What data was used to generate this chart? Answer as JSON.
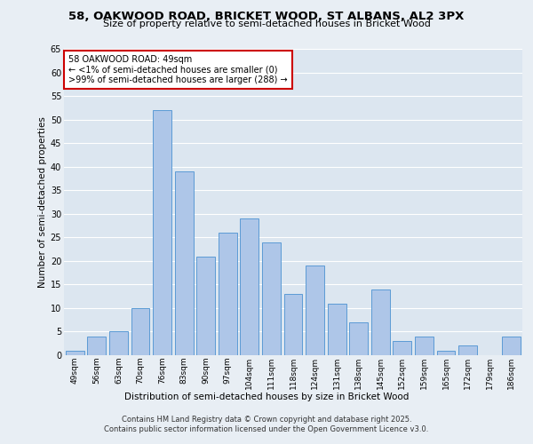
{
  "title_line1": "58, OAKWOOD ROAD, BRICKET WOOD, ST ALBANS, AL2 3PX",
  "title_line2": "Size of property relative to semi-detached houses in Bricket Wood",
  "xlabel": "Distribution of semi-detached houses by size in Bricket Wood",
  "ylabel": "Number of semi-detached properties",
  "categories": [
    "49sqm",
    "56sqm",
    "63sqm",
    "70sqm",
    "76sqm",
    "83sqm",
    "90sqm",
    "97sqm",
    "104sqm",
    "111sqm",
    "118sqm",
    "124sqm",
    "131sqm",
    "138sqm",
    "145sqm",
    "152sqm",
    "159sqm",
    "165sqm",
    "172sqm",
    "179sqm",
    "186sqm"
  ],
  "values": [
    1,
    4,
    5,
    10,
    52,
    39,
    21,
    26,
    29,
    24,
    13,
    19,
    11,
    7,
    14,
    3,
    4,
    1,
    2,
    0,
    4
  ],
  "bar_color": "#aec6e8",
  "bar_edge_color": "#5b9bd5",
  "annotation_text": "58 OAKWOOD ROAD: 49sqm\n← <1% of semi-detached houses are smaller (0)\n>99% of semi-detached houses are larger (288) →",
  "annotation_box_color": "#ffffff",
  "annotation_box_edge": "#cc0000",
  "bg_color": "#e8eef4",
  "plot_bg_color": "#dce6f0",
  "footer_text": "Contains HM Land Registry data © Crown copyright and database right 2025.\nContains public sector information licensed under the Open Government Licence v3.0.",
  "ylim": [
    0,
    65
  ],
  "yticks": [
    0,
    5,
    10,
    15,
    20,
    25,
    30,
    35,
    40,
    45,
    50,
    55,
    60,
    65
  ]
}
